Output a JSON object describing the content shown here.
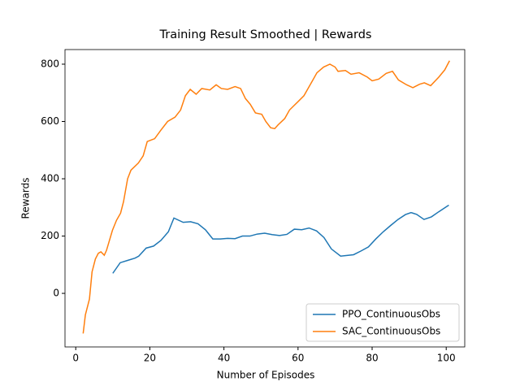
{
  "chart_data": {
    "type": "line",
    "title": "Training Result Smoothed | Rewards",
    "x_label": "Number of Episodes",
    "y_label": "Rewards",
    "xlim": [
      -2.9,
      105
    ],
    "ylim": [
      -187,
      851
    ],
    "xticks": [
      0,
      20,
      40,
      60,
      80,
      100
    ],
    "yticks": [
      0,
      200,
      400,
      600,
      800
    ],
    "legend": "lower right",
    "series": [
      {
        "name": "PPO_ContinuousObs",
        "color": "#1f77b4",
        "x": [
          10,
          12,
          14,
          16,
          17,
          19,
          21,
          23,
          25,
          26.5,
          29,
          31,
          33,
          35,
          37,
          39,
          41,
          43,
          45,
          47,
          49,
          51,
          53,
          55,
          57,
          59,
          61,
          63,
          65,
          67,
          69,
          71.5,
          73,
          75,
          77,
          79,
          81,
          83,
          85,
          87,
          89,
          90.5,
          92,
          94,
          96,
          98,
          100.7
        ],
        "values": [
          70,
          107,
          115,
          123,
          130,
          158,
          165,
          185,
          215,
          263,
          248,
          250,
          243,
          222,
          190,
          190,
          192,
          191,
          200,
          200,
          207,
          210,
          205,
          202,
          206,
          224,
          222,
          228,
          218,
          195,
          155,
          130,
          132,
          135,
          148,
          162,
          190,
          215,
          237,
          258,
          275,
          282,
          276,
          258,
          267,
          285,
          308
        ]
      },
      {
        "name": "SAC_ContinuousObs",
        "color": "#ff7f0e",
        "x": [
          2,
          2.6,
          3.7,
          4.4,
          5.3,
          6.1,
          6.8,
          7.7,
          8.3,
          9.9,
          11,
          12.1,
          12.9,
          14,
          14.9,
          16.9,
          18.2,
          19.3,
          21.3,
          23,
          24.8,
          26.8,
          28.3,
          29.6,
          30.9,
          32.5,
          34,
          36.2,
          37.9,
          39.3,
          41,
          43,
          44.5,
          45.8,
          47.1,
          48.5,
          50.2,
          51.3,
          52.6,
          53.7,
          54.6,
          56.4,
          57.7,
          59.9,
          61.6,
          63.8,
          65.1,
          66.9,
          68.6,
          70,
          70.8,
          72.8,
          74.3,
          76.5,
          78.7,
          80,
          81.8,
          83.8,
          85.5,
          87.1,
          89.3,
          91,
          92.8,
          94.1,
          95.8,
          98,
          99.6,
          100.9
        ],
        "values": [
          -140,
          -75,
          -20,
          75,
          120,
          140,
          145,
          133,
          150,
          220,
          255,
          280,
          320,
          400,
          430,
          455,
          480,
          530,
          540,
          570,
          600,
          615,
          640,
          690,
          712,
          695,
          715,
          710,
          728,
          715,
          712,
          722,
          715,
          680,
          660,
          630,
          625,
          600,
          578,
          575,
          588,
          610,
          640,
          668,
          690,
          740,
          770,
          790,
          800,
          790,
          775,
          778,
          765,
          770,
          755,
          742,
          748,
          768,
          775,
          745,
          728,
          718,
          730,
          735,
          725,
          755,
          780,
          812
        ]
      }
    ]
  }
}
